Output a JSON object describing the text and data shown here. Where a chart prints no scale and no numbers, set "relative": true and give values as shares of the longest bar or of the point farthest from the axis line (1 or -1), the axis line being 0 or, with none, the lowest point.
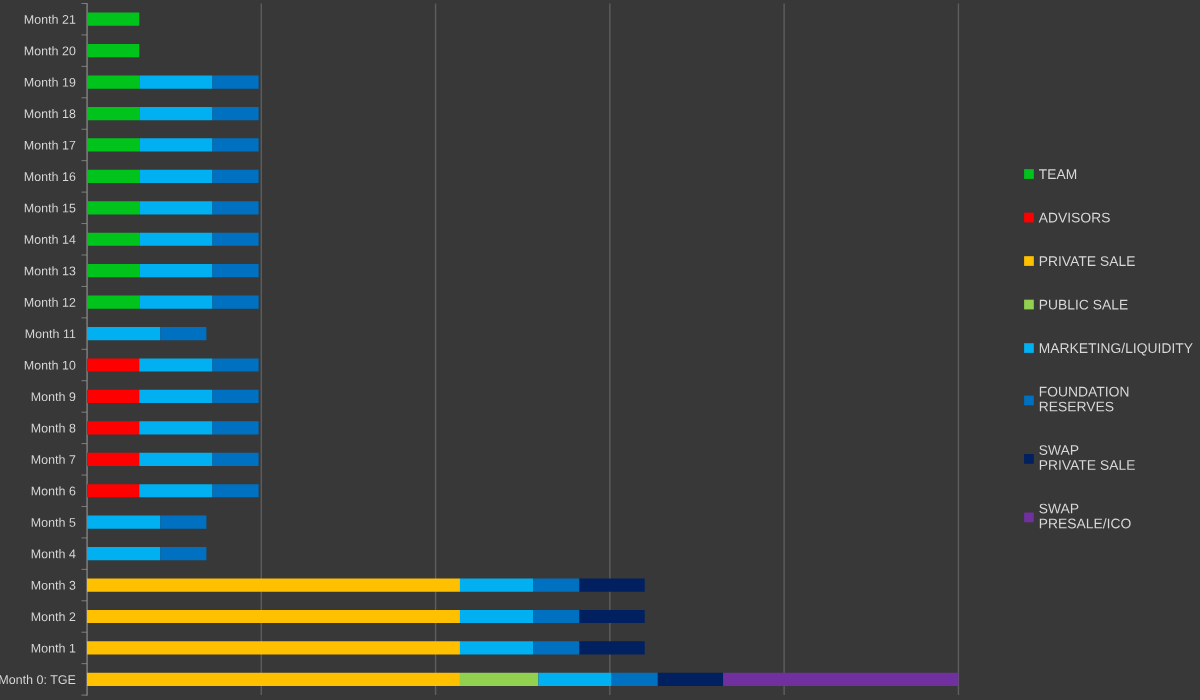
{
  "chart_data": {
    "type": "bar",
    "orientation": "horizontal",
    "stacked": true,
    "relative": true,
    "grid": "x",
    "legend": "right",
    "categories": [
      "Month 21",
      "Month 20",
      "Month 19",
      "Month 18",
      "Month 17",
      "Month 16",
      "Month 15",
      "Month 14",
      "Month 13",
      "Month 12",
      "Month 11",
      "Month 10",
      "Month 9",
      "Month 8",
      "Month 7",
      "Month 6",
      "Month 5",
      "Month 4",
      "Month 3",
      "Month 2",
      "Month 1",
      "Month 0: TGE"
    ],
    "series": [
      {
        "name": "TEAM",
        "color": "#00c41c",
        "values": [
          0.06,
          0.06,
          0.06,
          0.06,
          0.06,
          0.06,
          0.06,
          0.06,
          0.06,
          0.06,
          null,
          null,
          null,
          null,
          null,
          null,
          null,
          null,
          null,
          null,
          null,
          null
        ]
      },
      {
        "name": "ADVISORS",
        "color": "#ff0000",
        "values": [
          null,
          null,
          null,
          null,
          null,
          null,
          null,
          null,
          null,
          null,
          null,
          0.06,
          0.06,
          0.06,
          0.06,
          0.06,
          null,
          null,
          null,
          null,
          null,
          null
        ]
      },
      {
        "name": "PRIVATE SALE",
        "color": "#ffc000",
        "values": [
          null,
          null,
          null,
          null,
          null,
          null,
          null,
          null,
          null,
          null,
          null,
          null,
          null,
          null,
          null,
          null,
          null,
          null,
          0.428,
          0.428,
          0.428,
          0.428
        ]
      },
      {
        "name": "PUBLIC SALE",
        "color": "#92d050",
        "values": [
          null,
          null,
          null,
          null,
          null,
          null,
          null,
          null,
          null,
          null,
          null,
          null,
          null,
          null,
          null,
          null,
          null,
          null,
          null,
          null,
          null,
          0.09
        ]
      },
      {
        "name": "MARKETING/LIQUIDITY",
        "color": "#00b0f0",
        "values": [
          null,
          null,
          0.084,
          0.084,
          0.084,
          0.084,
          0.084,
          0.084,
          0.084,
          0.084,
          0.084,
          0.084,
          0.084,
          0.084,
          0.084,
          0.084,
          0.084,
          0.084,
          0.084,
          0.084,
          0.084,
          0.084
        ]
      },
      {
        "name": "FOUNDATION RESERVES",
        "color": "#0070c0",
        "values": [
          null,
          null,
          0.053,
          0.053,
          0.053,
          0.053,
          0.053,
          0.053,
          0.053,
          0.053,
          0.053,
          0.053,
          0.053,
          0.053,
          0.053,
          0.053,
          0.053,
          0.053,
          0.053,
          0.053,
          0.053,
          0.053
        ]
      },
      {
        "name": "SWAP PRIVATE SALE",
        "color": "#002060",
        "values": [
          null,
          null,
          null,
          null,
          null,
          null,
          null,
          null,
          null,
          null,
          null,
          null,
          null,
          null,
          null,
          null,
          null,
          null,
          0.075,
          0.075,
          0.075,
          0.075
        ]
      },
      {
        "name": "SWAP PRESALE/ICO",
        "color": "#7030a0",
        "values": [
          null,
          null,
          null,
          null,
          null,
          null,
          null,
          null,
          null,
          null,
          null,
          null,
          null,
          null,
          null,
          null,
          null,
          null,
          null,
          null,
          null,
          0.27
        ]
      }
    ]
  }
}
